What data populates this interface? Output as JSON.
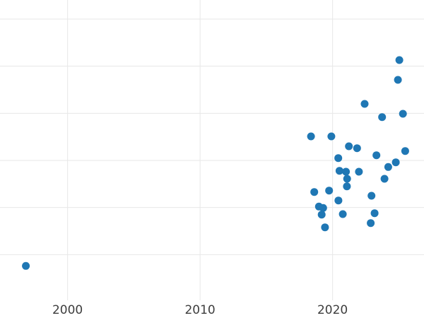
{
  "figure": {
    "background": "#ffffff"
  },
  "chart_data": {
    "type": "scatter",
    "title": "",
    "subtitle": "",
    "xlabel": "",
    "ylabel": "",
    "legend": "none",
    "grid": true,
    "x_tick_labels": [
      "2000",
      "2010",
      "2020"
    ],
    "x_ticks": [
      2000,
      2010,
      2020
    ],
    "y_tick_labels_visible": false,
    "y_gridline_values": [
      1,
      2,
      3,
      4,
      5,
      6
    ],
    "xlim": [
      1994.9,
      2026.9
    ],
    "ylim": [
      0,
      6.4
    ],
    "marker_color": "#1f77b4",
    "marker_diameter_px": 11,
    "gridline_color": "#e7e7e7",
    "tick_label_color": "#3d3d3d",
    "points": [
      {
        "x": 1996.85,
        "y": 0.76
      },
      {
        "x": 2018.37,
        "y": 3.51
      },
      {
        "x": 2018.62,
        "y": 2.33
      },
      {
        "x": 2018.97,
        "y": 2.02
      },
      {
        "x": 2019.18,
        "y": 1.85
      },
      {
        "x": 2019.29,
        "y": 1.99
      },
      {
        "x": 2019.43,
        "y": 1.58
      },
      {
        "x": 2019.74,
        "y": 2.36
      },
      {
        "x": 2019.91,
        "y": 3.51
      },
      {
        "x": 2020.43,
        "y": 3.05
      },
      {
        "x": 2020.44,
        "y": 2.15
      },
      {
        "x": 2020.52,
        "y": 2.78
      },
      {
        "x": 2020.77,
        "y": 1.86
      },
      {
        "x": 2021.01,
        "y": 2.76
      },
      {
        "x": 2021.08,
        "y": 2.45
      },
      {
        "x": 2021.1,
        "y": 2.61
      },
      {
        "x": 2021.23,
        "y": 3.3
      },
      {
        "x": 2021.85,
        "y": 3.26
      },
      {
        "x": 2021.99,
        "y": 2.76
      },
      {
        "x": 2022.42,
        "y": 4.2
      },
      {
        "x": 2022.88,
        "y": 1.67
      },
      {
        "x": 2022.94,
        "y": 2.25
      },
      {
        "x": 2023.17,
        "y": 1.88
      },
      {
        "x": 2023.31,
        "y": 3.11
      },
      {
        "x": 2023.74,
        "y": 3.92
      },
      {
        "x": 2023.92,
        "y": 2.61
      },
      {
        "x": 2024.2,
        "y": 2.86
      },
      {
        "x": 2024.77,
        "y": 2.96
      },
      {
        "x": 2024.93,
        "y": 4.71
      },
      {
        "x": 2025.04,
        "y": 5.13
      },
      {
        "x": 2025.31,
        "y": 3.99
      },
      {
        "x": 2025.48,
        "y": 3.2
      }
    ]
  }
}
